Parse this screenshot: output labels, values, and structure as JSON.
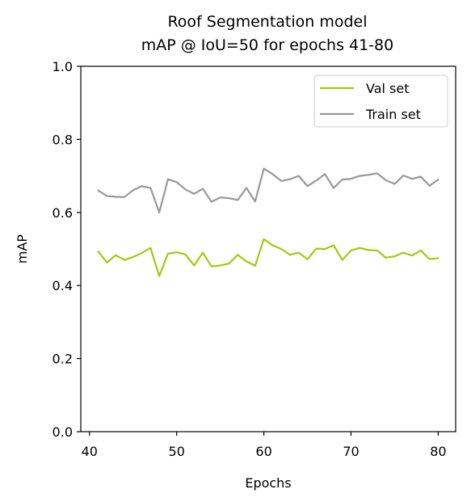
{
  "chart_data": {
    "type": "line",
    "title_lines": [
      "Roof Segmentation model",
      "mAP @ IoU=50 for epochs 41-80"
    ],
    "xlabel": "Epochs",
    "ylabel": "mAP",
    "xlim": [
      39,
      82
    ],
    "ylim": [
      0,
      1.0
    ],
    "xticks": [
      40,
      50,
      60,
      70,
      80
    ],
    "yticks": [
      0.0,
      0.2,
      0.4,
      0.6,
      0.8,
      1.0
    ],
    "ytick_labels": [
      "0.0",
      "0.2",
      "0.4",
      "0.6",
      "0.8",
      "1.0"
    ],
    "grid": false,
    "legend_position": "top-right",
    "x": [
      41,
      42,
      43,
      44,
      45,
      46,
      47,
      48,
      49,
      50,
      51,
      52,
      53,
      54,
      55,
      56,
      57,
      58,
      59,
      60,
      61,
      62,
      63,
      64,
      65,
      66,
      67,
      68,
      69,
      70,
      71,
      72,
      73,
      74,
      75,
      76,
      77,
      78,
      79,
      80
    ],
    "series": [
      {
        "name": "Val set",
        "color": "#a8c70b",
        "values": [
          0.493,
          0.463,
          0.483,
          0.47,
          0.478,
          0.489,
          0.503,
          0.426,
          0.487,
          0.491,
          0.485,
          0.455,
          0.49,
          0.452,
          0.455,
          0.46,
          0.484,
          0.466,
          0.454,
          0.527,
          0.51,
          0.5,
          0.484,
          0.49,
          0.472,
          0.501,
          0.5,
          0.51,
          0.47,
          0.496,
          0.503,
          0.497,
          0.496,
          0.476,
          0.48,
          0.49,
          0.482,
          0.496,
          0.472,
          0.475
        ]
      },
      {
        "name": "Train set",
        "color": "#999999",
        "values": [
          0.66,
          0.645,
          0.643,
          0.642,
          0.661,
          0.672,
          0.667,
          0.6,
          0.691,
          0.683,
          0.663,
          0.651,
          0.665,
          0.629,
          0.641,
          0.639,
          0.634,
          0.667,
          0.63,
          0.72,
          0.705,
          0.686,
          0.691,
          0.7,
          0.672,
          0.687,
          0.705,
          0.667,
          0.69,
          0.692,
          0.7,
          0.703,
          0.707,
          0.688,
          0.678,
          0.701,
          0.692,
          0.698,
          0.673,
          0.69
        ]
      }
    ]
  }
}
